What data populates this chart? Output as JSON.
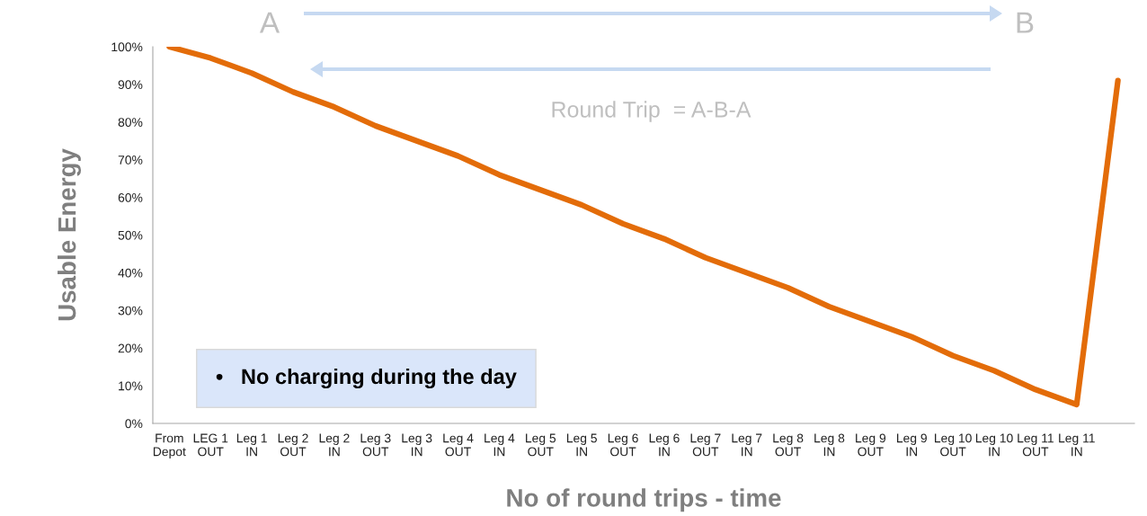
{
  "chart_data": {
    "type": "line",
    "xlabel": "No of round trips - time",
    "ylabel": "Usable Energy",
    "categories": [
      "From\nDepot",
      "LEG 1\nOUT",
      "Leg 1\nIN",
      "Leg 2\nOUT",
      "Leg 2\nIN",
      "Leg 3\nOUT",
      "Leg 3\nIN",
      "Leg 4\nOUT",
      "Leg 4\nIN",
      "Leg 5\nOUT",
      "Leg 5\nIN",
      "Leg 6\nOUT",
      "Leg 6\nIN",
      "Leg 7\nOUT",
      "Leg 7\nIN",
      "Leg 8\nOUT",
      "Leg 8\nIN",
      "Leg 9\nOUT",
      "Leg 9\nIN",
      "Leg 10\nOUT",
      "Leg 10\nIN",
      "Leg 11\nOUT",
      "Leg 11\nIN",
      null
    ],
    "series": [
      {
        "color": "#e36c09",
        "values": [
          100,
          97,
          93,
          88,
          84,
          79,
          75,
          71,
          66,
          62,
          58,
          53,
          49,
          44,
          40,
          36,
          31,
          27,
          23,
          18,
          14,
          9,
          5,
          91
        ]
      }
    ],
    "ylim": [
      0,
      100
    ],
    "yticks": [
      {
        "value": 0,
        "label": "0%"
      },
      {
        "value": 10,
        "label": "10%"
      },
      {
        "value": 20,
        "label": "20%"
      },
      {
        "value": 30,
        "label": "30%"
      },
      {
        "value": 40,
        "label": "40%"
      },
      {
        "value": 50,
        "label": "50%"
      },
      {
        "value": 60,
        "label": "60%"
      },
      {
        "value": 70,
        "label": "70%"
      },
      {
        "value": 80,
        "label": "80%"
      },
      {
        "value": 90,
        "label": "90%"
      },
      {
        "value": 100,
        "label": "100%"
      }
    ],
    "grid": false,
    "marker": "none",
    "line_style": "solid",
    "legend": false,
    "annotations": [
      "A",
      "B",
      "Round Trip  = A-B-A",
      "•   No charging during the day"
    ]
  }
}
